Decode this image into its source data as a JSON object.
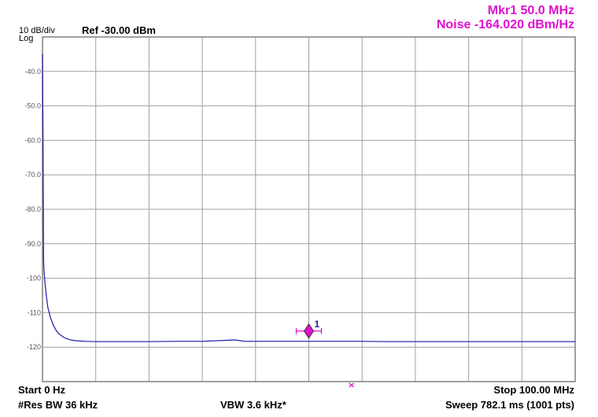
{
  "marker": {
    "line1": "Mkr1 50.0 MHz",
    "line2": "Noise -164.020 dBm/Hz",
    "label": "1"
  },
  "header": {
    "scale": "10 dB/div",
    "scale_type": "Log",
    "ref": "Ref -30.00 dBm"
  },
  "footer": {
    "start": "Start 0 Hz",
    "stop": "Stop 100.00 MHz",
    "res_bw": "#Res BW 36 kHz",
    "vbw": "VBW 3.6 kHz*",
    "sweep": "Sweep  782.1 ms (1001 pts)"
  },
  "colors": {
    "trace": "#1a1aa8",
    "marker": "#e010d0",
    "grid": "#a0a0a0",
    "frame": "#808080"
  },
  "chart_data": {
    "type": "line",
    "title": "",
    "xlabel": "",
    "ylabel": "",
    "xlim": [
      0,
      100
    ],
    "ylim": [
      -130,
      -30
    ],
    "y_tick_labels": [
      "-40.0",
      "-50.0",
      "-60.0",
      "-70.0",
      "-80.0",
      "-90.0",
      "-100",
      "-110",
      "-120"
    ],
    "y_tick_values": [
      -40,
      -50,
      -60,
      -70,
      -80,
      -90,
      -100,
      -110,
      -120
    ],
    "grid": true,
    "series": [
      {
        "x": [
          0,
          0.1,
          0.2,
          0.3,
          0.5,
          0.8,
          1,
          1.5,
          2,
          2.5,
          3,
          4,
          5,
          6,
          8,
          10,
          12,
          15,
          20,
          25,
          30,
          35,
          36,
          37,
          38,
          40,
          45,
          50,
          55,
          60,
          65,
          70,
          75,
          80,
          85,
          90,
          95,
          100
        ],
        "y": [
          -35,
          -60,
          -95,
          -98,
          -102,
          -106,
          -108.5,
          -111.5,
          -113.5,
          -115,
          -116,
          -117.2,
          -117.8,
          -118.1,
          -118.3,
          -118.4,
          -118.4,
          -118.4,
          -118.4,
          -118.3,
          -118.3,
          -118.0,
          -117.9,
          -118.1,
          -118.3,
          -118.3,
          -118.3,
          -118.3,
          -118.3,
          -118.3,
          -118.4,
          -118.4,
          -118.4,
          -118.4,
          -118.4,
          -118.4,
          -118.4,
          -118.4
        ]
      }
    ],
    "marker": {
      "x": 50.0,
      "y": -118.3
    },
    "reference_marker_x": 58.0
  }
}
